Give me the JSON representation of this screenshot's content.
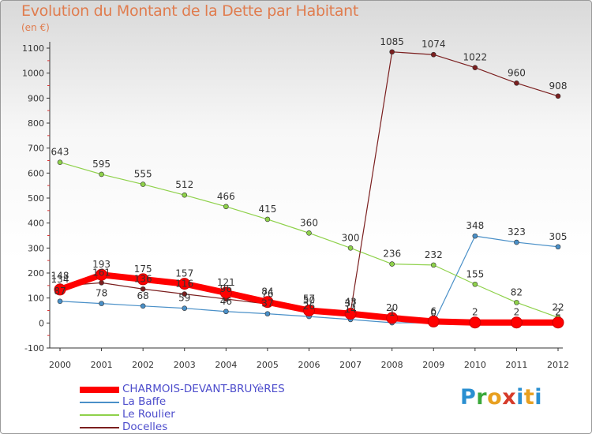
{
  "title": "Evolution du Montant de la Dette par Habitant",
  "unit": "(en €)",
  "logo_text": "Proxiti",
  "chart_data": {
    "type": "line",
    "title": "Evolution du Montant de la Dette par Habitant",
    "ylabel": "(en €)",
    "xlabel": "",
    "x": [
      "2000",
      "2001",
      "2002",
      "2003",
      "2004",
      "2005",
      "2006",
      "2007",
      "2008",
      "2009",
      "2010",
      "2011",
      "2012"
    ],
    "ylim": [
      -100,
      1100
    ],
    "yticks": [
      "-100",
      "0",
      "100",
      "200",
      "300",
      "400",
      "500",
      "600",
      "700",
      "800",
      "900",
      "1000",
      "1100"
    ],
    "grid": false,
    "legend_position": "bottom-left",
    "series": [
      {
        "name": "CHARMOIS-DEVANT-BRUYèRES",
        "color": "#ff0000",
        "values": [
          134,
          193,
          175,
          157,
          121,
          84,
          50,
          37,
          20,
          6,
          2,
          2,
          2
        ],
        "labels": [
          "134",
          "193",
          "175",
          "157",
          "121",
          "84",
          "50",
          "37",
          "20",
          "6",
          "2",
          "2",
          "2"
        ]
      },
      {
        "name": "La Baffe",
        "color": "#4a90c8",
        "values": [
          87,
          78,
          68,
          59,
          46,
          37,
          26,
          14,
          1,
          0,
          348,
          323,
          305
        ],
        "labels": [
          "87",
          "78",
          "68",
          "59",
          "46",
          "37",
          "26",
          "14",
          "1",
          "0",
          "348",
          "323",
          "305"
        ]
      },
      {
        "name": "Le Roulier",
        "color": "#8ed14a",
        "values": [
          643,
          595,
          555,
          512,
          466,
          415,
          360,
          300,
          236,
          232,
          155,
          82,
          22
        ],
        "labels": [
          "643",
          "595",
          "555",
          "512",
          "466",
          "415",
          "360",
          "300",
          "236",
          "232",
          "155",
          "82",
          "22"
        ]
      },
      {
        "name": "Docelles",
        "color": "#7b1f1f",
        "values": [
          148,
          161,
          136,
          116,
          96,
          76,
          57,
          43,
          1085,
          1074,
          1022,
          960,
          908
        ],
        "labels": [
          "148",
          "161",
          "136",
          "116",
          "96",
          "76",
          "57",
          "43",
          "1085",
          "1074",
          "1022",
          "960",
          "908"
        ]
      }
    ]
  }
}
